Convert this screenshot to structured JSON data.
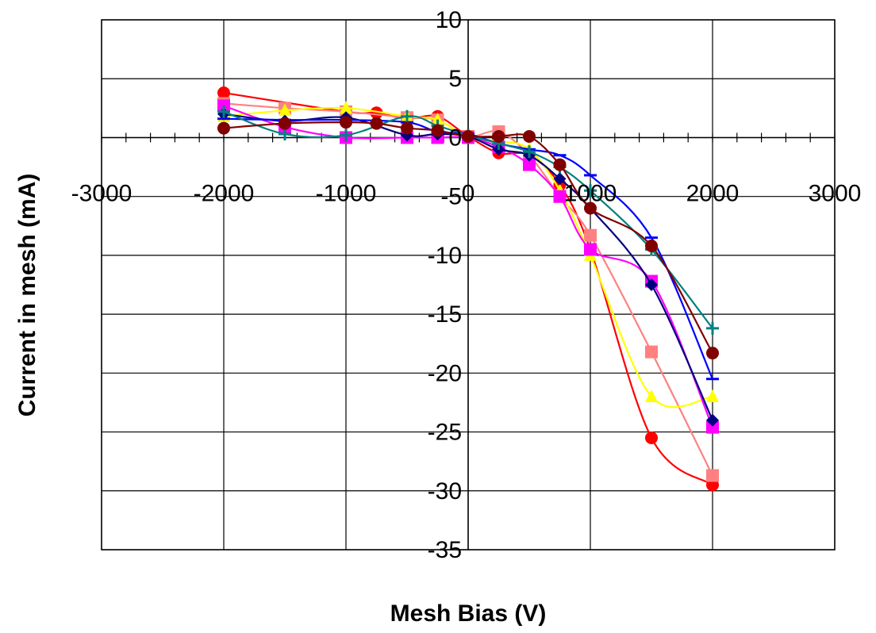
{
  "chart_data": {
    "type": "scatter",
    "xlabel": "Mesh Bias (V)",
    "ylabel": "Current in mesh (mA)",
    "xlim": [
      -3000,
      3000
    ],
    "ylim": [
      -35,
      10
    ],
    "x_ticks": [
      -3000,
      -2000,
      -1000,
      0,
      1000,
      2000,
      3000
    ],
    "y_ticks": [
      10,
      5,
      0,
      -5,
      -10,
      -15,
      -20,
      -25,
      -30,
      -35
    ],
    "x_tick_labels": [
      "-3000",
      "-2000",
      "-1000",
      "0",
      "1000",
      "2000",
      "3000"
    ],
    "y_tick_labels": [
      "10",
      "5",
      "0",
      "-5",
      "-10",
      "-15",
      "-20",
      "-25",
      "-30",
      "-35"
    ],
    "grid": true,
    "legend": "none",
    "series": [
      {
        "color": "#ff0000",
        "marker": "circle",
        "x": [
          -2000,
          -1000,
          -750,
          -500,
          -250,
          0,
          250,
          500,
          750,
          1000,
          1500,
          2000
        ],
        "y": [
          3.8,
          2.2,
          2.1,
          1.6,
          1.8,
          0.1,
          -1.3,
          -1.5,
          -4.0,
          -9.5,
          -25.5,
          -29.5
        ]
      },
      {
        "color": "#ff8080",
        "marker": "square",
        "x": [
          -2000,
          -1500,
          -1000,
          -500,
          -250,
          0,
          250,
          500,
          750,
          1000,
          1500,
          2000
        ],
        "y": [
          2.9,
          2.5,
          2.2,
          1.7,
          1.5,
          0.1,
          0.5,
          -1.5,
          -5.0,
          -8.3,
          -18.2,
          -28.7
        ]
      },
      {
        "color": "#ffff00",
        "marker": "triangle",
        "x": [
          -2000,
          -1500,
          -1000,
          -500,
          -250,
          0,
          250,
          500,
          750,
          1000,
          1500,
          2000
        ],
        "y": [
          1.8,
          2.3,
          2.5,
          1.8,
          1.5,
          0.0,
          -0.3,
          -1.0,
          -4.5,
          -10.0,
          -22.0,
          -22.0
        ]
      },
      {
        "color": "#ff00ff",
        "marker": "square",
        "x": [
          -2000,
          -1500,
          -1000,
          -500,
          -250,
          0,
          250,
          500,
          750,
          1000,
          1500,
          2000
        ],
        "y": [
          2.7,
          0.9,
          0.0,
          0.0,
          0.0,
          0.0,
          -0.8,
          -2.3,
          -5.0,
          -9.5,
          -12.2,
          -24.6
        ]
      },
      {
        "color": "#000080",
        "marker": "diamond",
        "x": [
          -2000,
          -1500,
          -1000,
          -500,
          -250,
          0,
          250,
          500,
          750,
          1000,
          1500,
          2000
        ],
        "y": [
          2.0,
          1.4,
          1.7,
          0.2,
          0.3,
          0.1,
          -1.0,
          -1.5,
          -3.5,
          -6.0,
          -12.5,
          -24.0
        ]
      },
      {
        "color": "#0000ff",
        "marker": "dash",
        "x": [
          -2000,
          -1500,
          -1000,
          -500,
          -250,
          0,
          250,
          500,
          750,
          1000,
          1500,
          2000
        ],
        "y": [
          1.6,
          1.5,
          1.5,
          1.3,
          0.5,
          0.3,
          -0.5,
          -1.0,
          -1.5,
          -3.2,
          -8.5,
          -20.5
        ]
      },
      {
        "color": "#008080",
        "marker": "plus",
        "x": [
          -2000,
          -1500,
          -1000,
          -500,
          -250,
          0,
          250,
          500,
          750,
          1000,
          1500,
          2000
        ],
        "y": [
          2.2,
          0.3,
          0.2,
          1.8,
          1.0,
          0.2,
          -0.5,
          -1.2,
          -2.5,
          -4.5,
          -9.5,
          -16.2
        ]
      },
      {
        "color": "#800000",
        "marker": "circle",
        "x": [
          -2000,
          -1500,
          -1000,
          -750,
          -500,
          -250,
          0,
          250,
          500,
          750,
          1000,
          1500,
          2000
        ],
        "y": [
          0.8,
          1.2,
          1.3,
          1.2,
          0.8,
          0.6,
          0.1,
          0.1,
          0.1,
          -2.3,
          -6.0,
          -9.2,
          -18.3
        ]
      }
    ]
  }
}
